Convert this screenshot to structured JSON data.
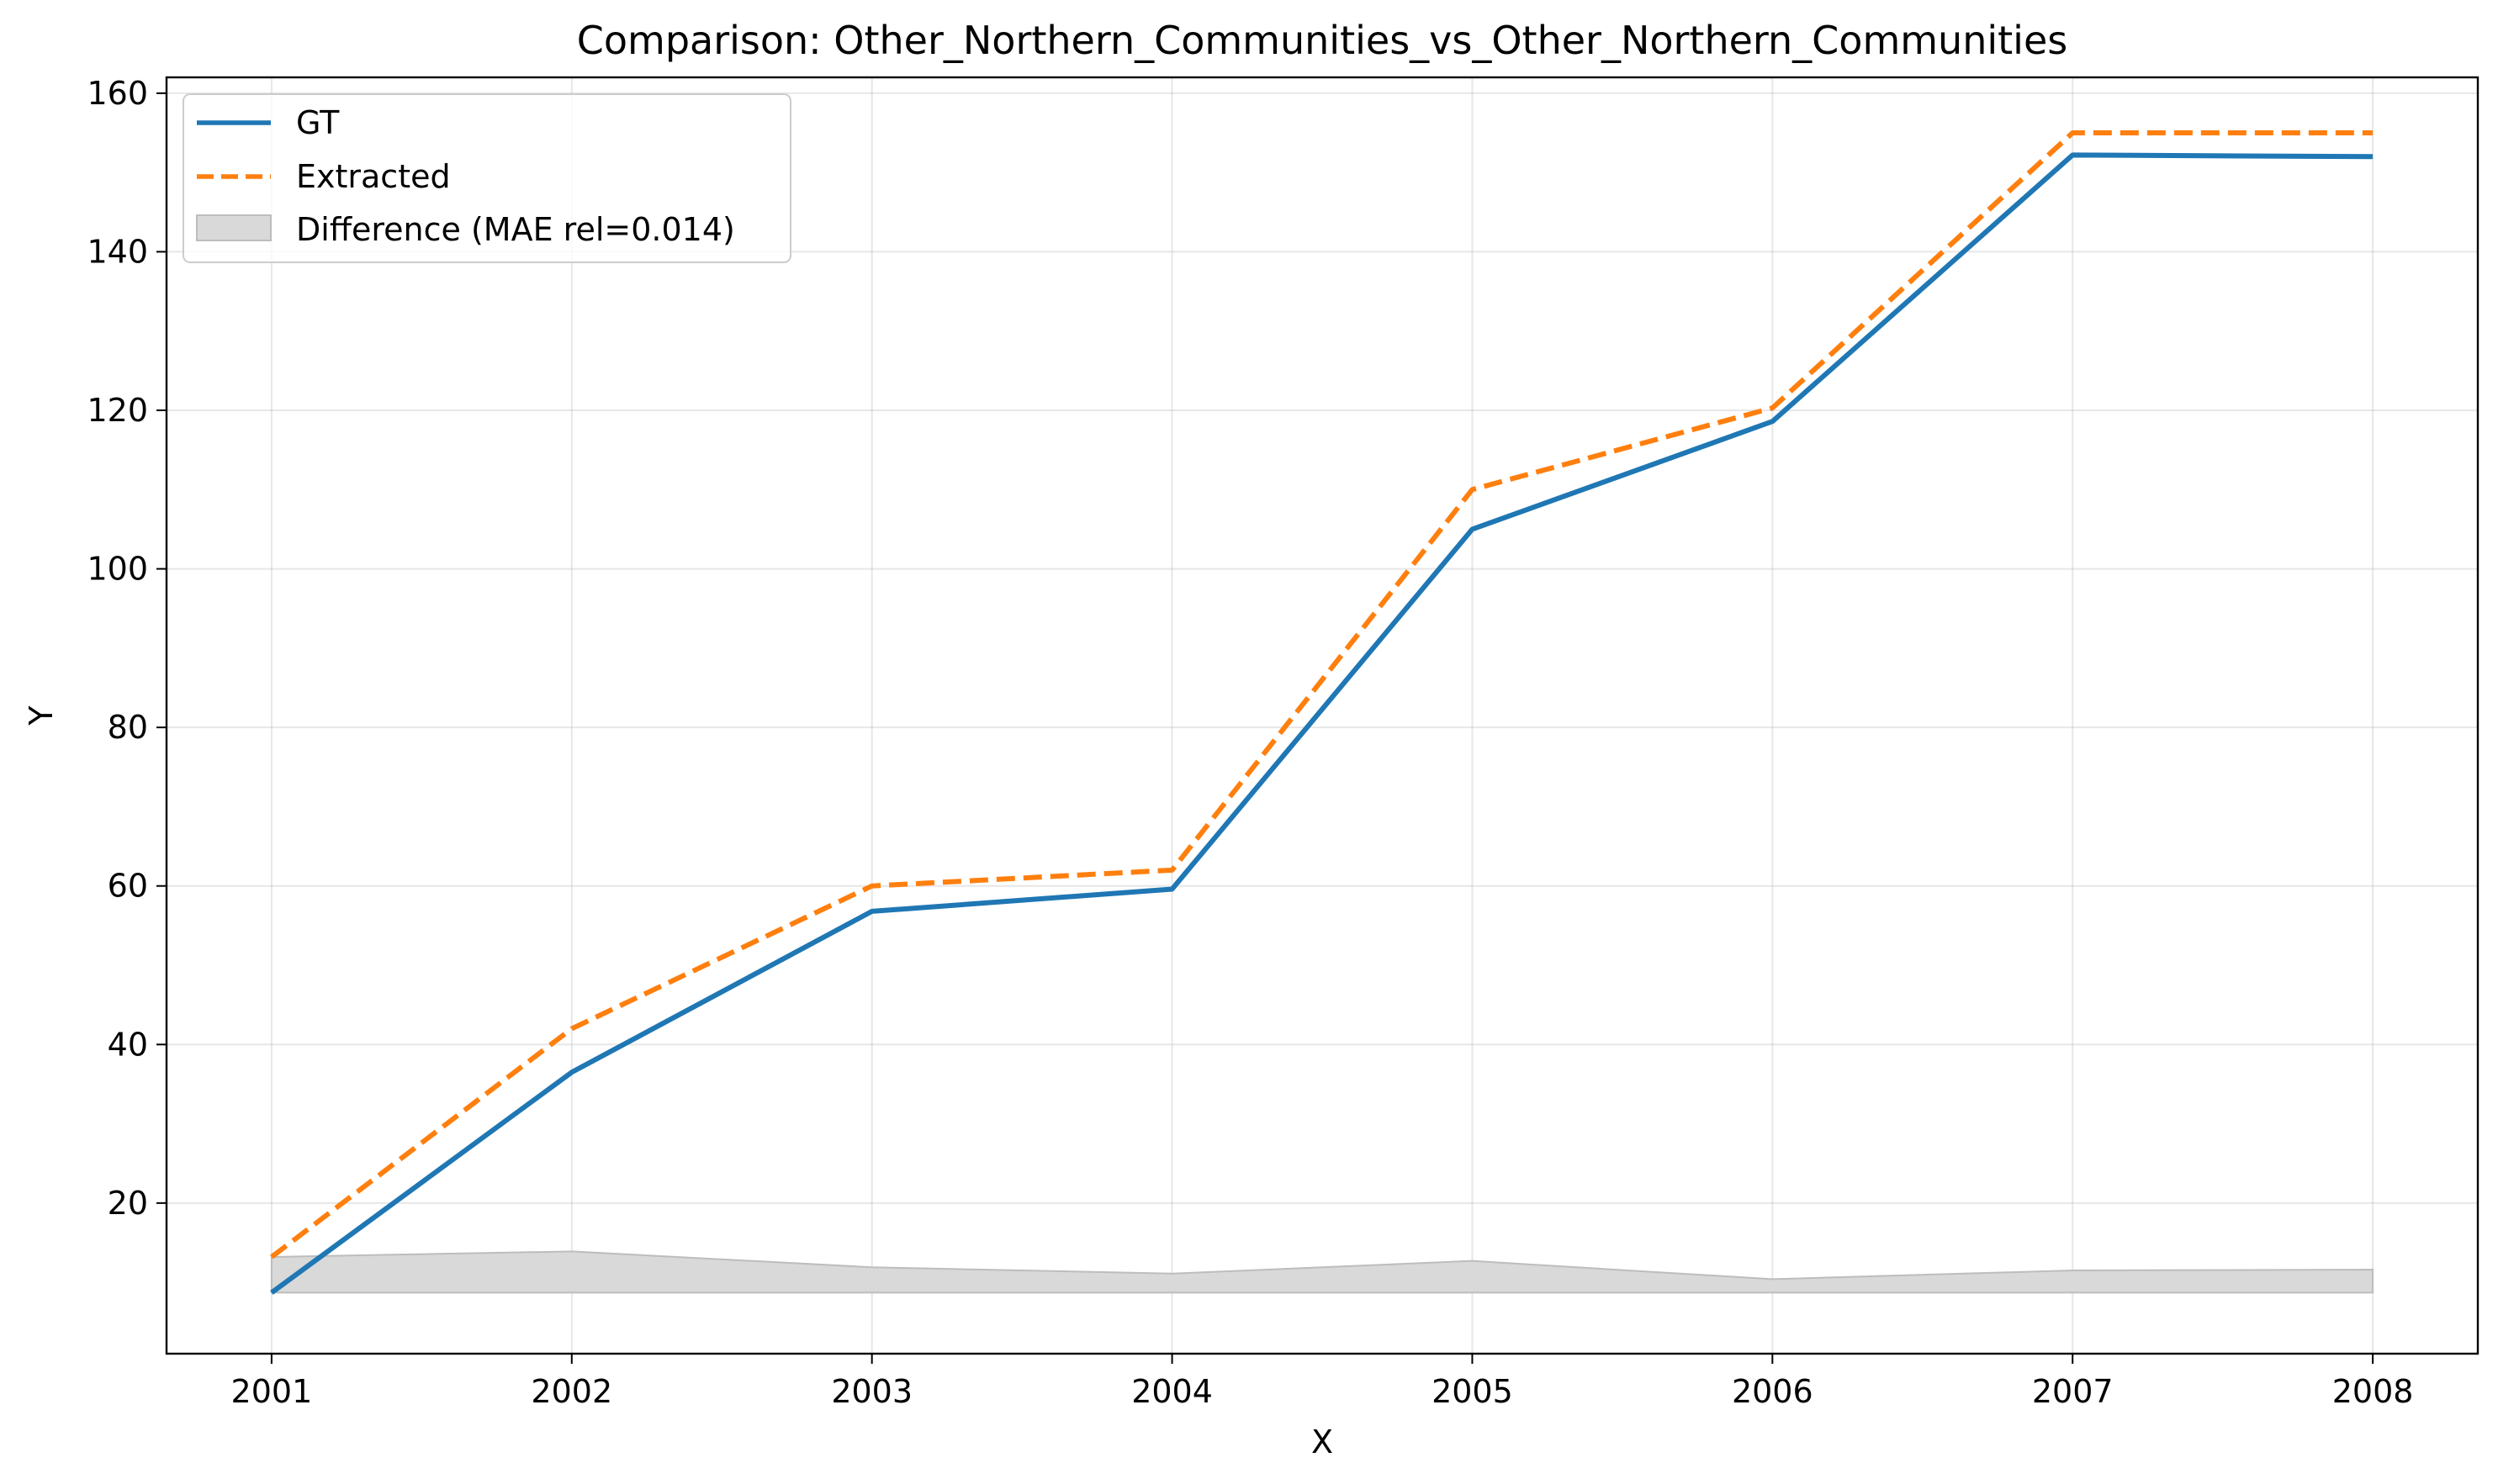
{
  "chart_data": {
    "type": "line",
    "title": "Comparison: Other_Northern_Communities_vs_Other_Northern_Communities",
    "xlabel": "X",
    "ylabel": "Y",
    "x": [
      2001,
      2002,
      2003,
      2004,
      2005,
      2006,
      2007,
      2008
    ],
    "x_ticks": [
      "2001",
      "2002",
      "2003",
      "2004",
      "2005",
      "2006",
      "2007",
      "2008"
    ],
    "y_ticks": [
      "20",
      "40",
      "60",
      "80",
      "100",
      "120",
      "140",
      "160"
    ],
    "ylim": [
      1,
      162
    ],
    "xlim": [
      2000.65,
      2008.35
    ],
    "grid": true,
    "legend_position": "top-left",
    "series": [
      {
        "name": "GT",
        "style": "solid",
        "color": "#1f77b4",
        "values": [
          8.7,
          36.5,
          56.8,
          59.6,
          105.0,
          118.6,
          152.2,
          152.0
        ]
      },
      {
        "name": "Extracted",
        "style": "dashed",
        "color": "#ff7f0e",
        "values": [
          13.2,
          42.0,
          60.0,
          62.0,
          110.0,
          120.3,
          155.0,
          155.0
        ]
      }
    ],
    "difference": {
      "name": "Difference (MAE rel=0.014)",
      "color": "#d9d9d9",
      "baseline": 8.7,
      "values": [
        13.2,
        13.9,
        11.9,
        11.1,
        12.7,
        10.4,
        11.5,
        11.6
      ]
    }
  }
}
